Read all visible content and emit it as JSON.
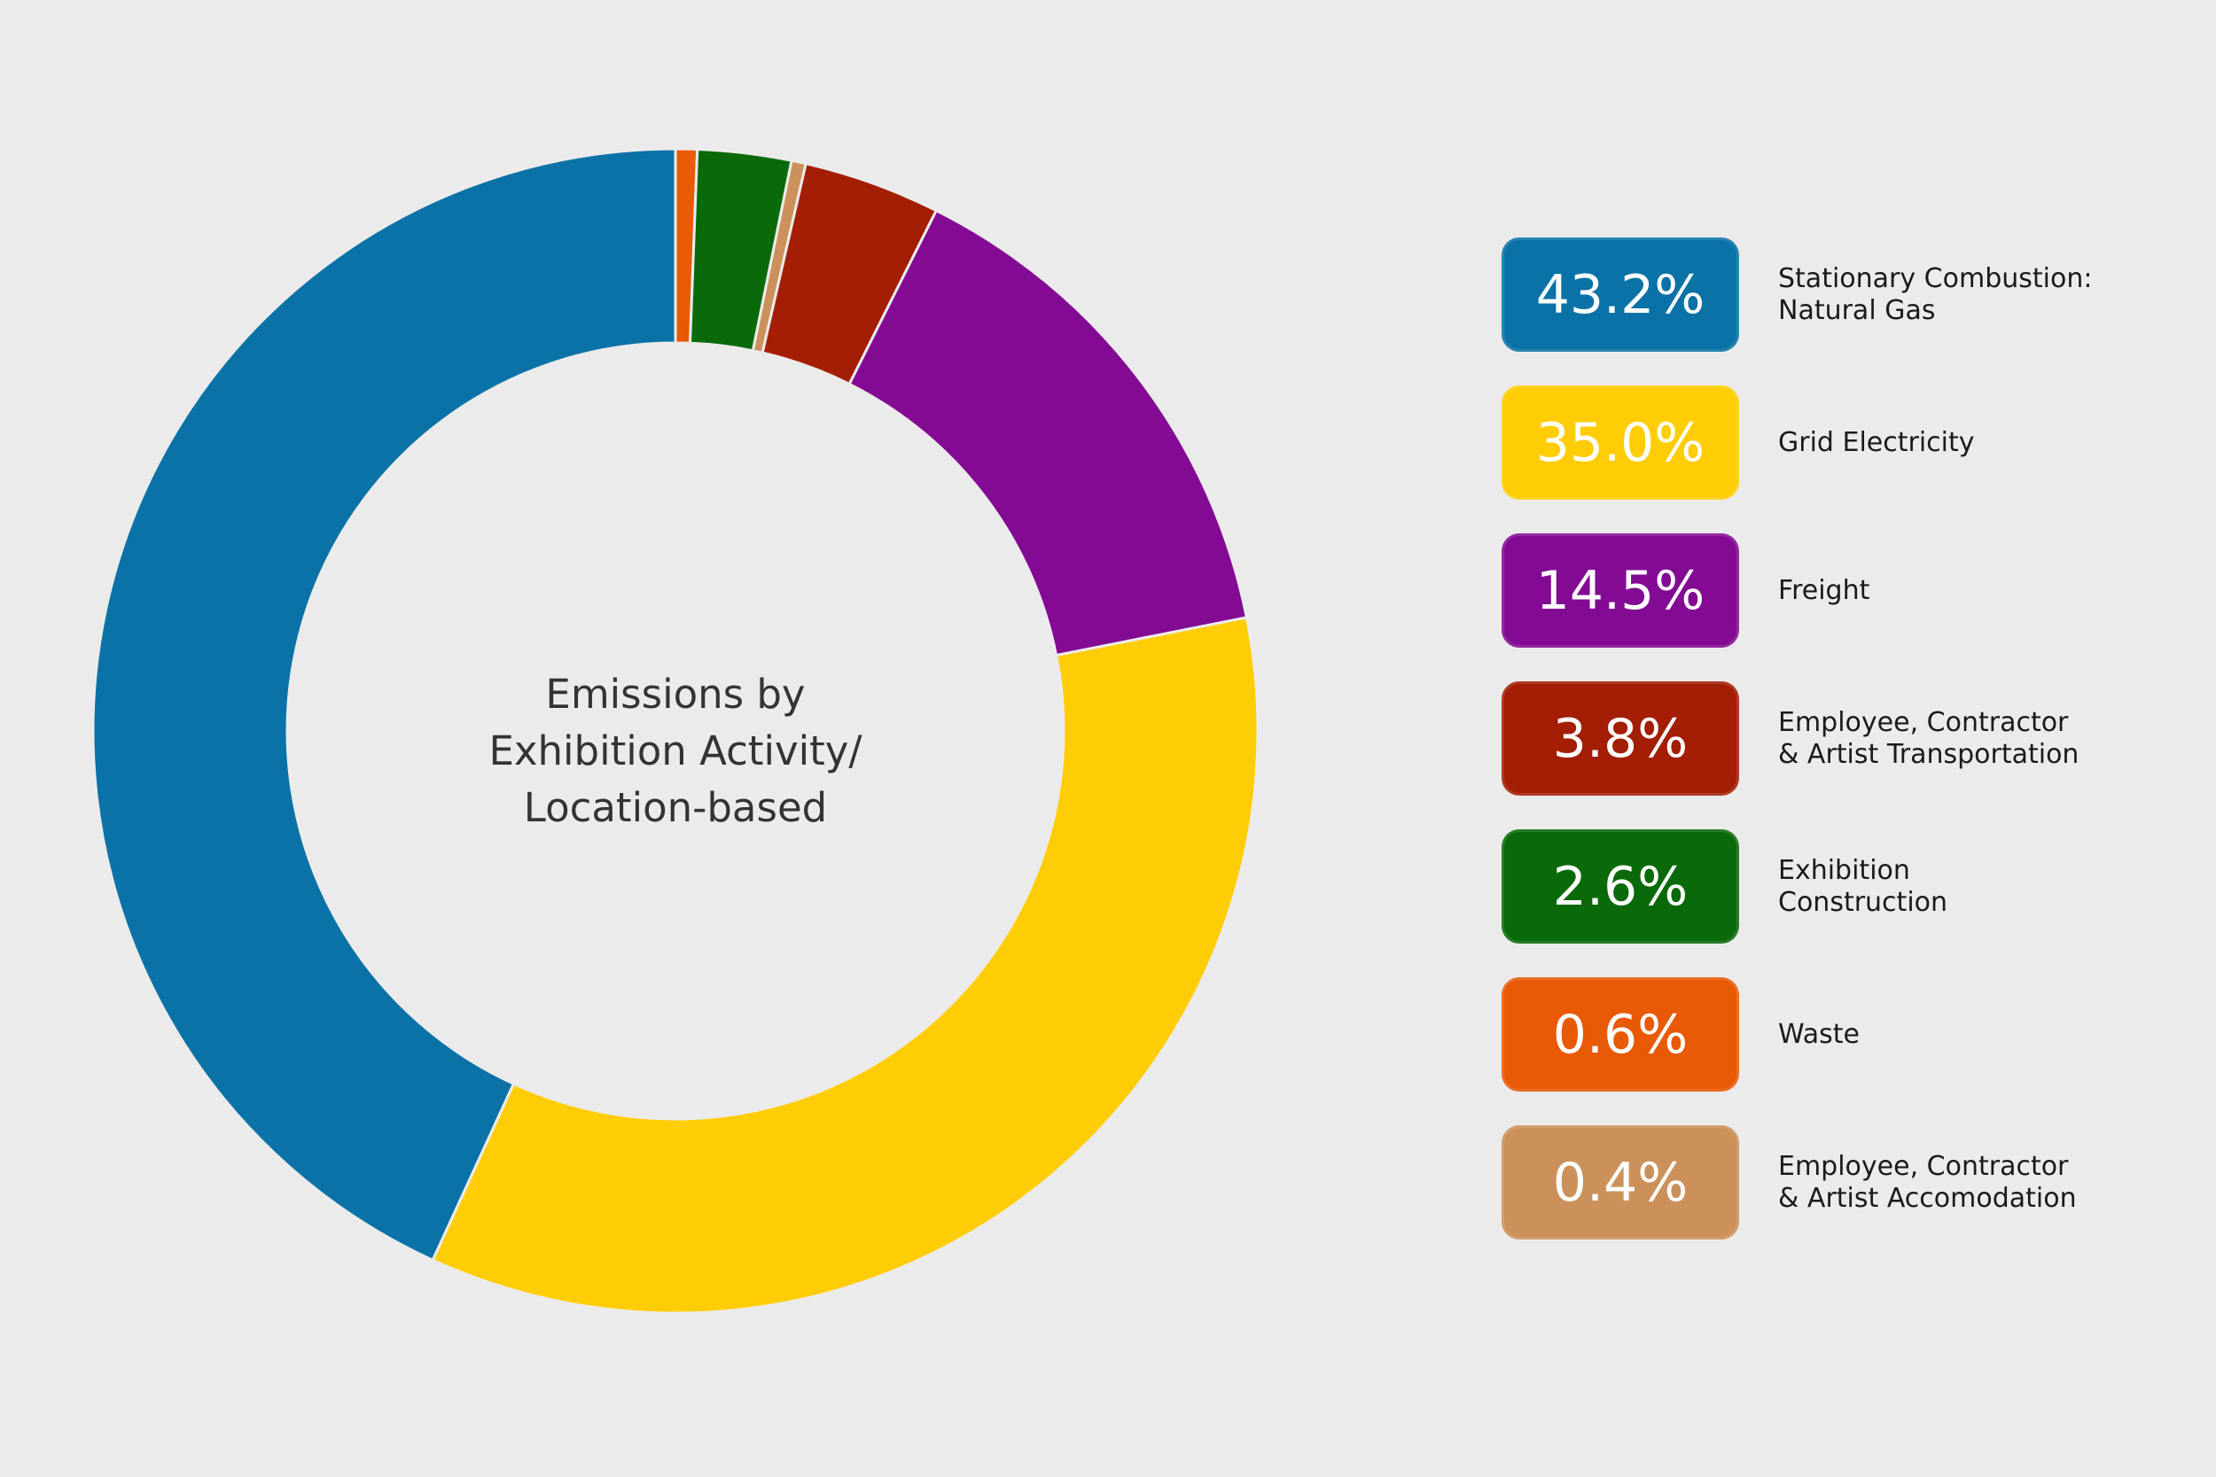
{
  "chart_data": {
    "type": "donut",
    "title_lines": [
      "Emissions by",
      "Exhibition Activity/",
      "Location-based"
    ],
    "slices": [
      {
        "label_lines": [
          "Stationary Combustion:",
          "Natural Gas"
        ],
        "value": 43.2,
        "display": "43.2%",
        "color": "#0a72a6"
      },
      {
        "label_lines": [
          "Grid Electricity"
        ],
        "value": 35.0,
        "display": "35.0%",
        "color": "#ffcd05"
      },
      {
        "label_lines": [
          "Freight"
        ],
        "value": 14.5,
        "display": "14.5%",
        "color": "#830a93"
      },
      {
        "label_lines": [
          "Employee, Contractor",
          "& Artist Transportation"
        ],
        "value": 3.8,
        "display": "3.8%",
        "color": "#a31e04"
      },
      {
        "label_lines": [
          "Exhibition",
          "Construction"
        ],
        "value": 2.6,
        "display": "2.6%",
        "color": "#0a6a0a"
      },
      {
        "label_lines": [
          "Waste"
        ],
        "value": 0.6,
        "display": "0.6%",
        "color": "#e85a06"
      },
      {
        "label_lines": [
          "Employee, Contractor",
          "& Artist Accomodation"
        ],
        "value": 0.4,
        "display": "0.4%",
        "color": "#cc915a"
      }
    ],
    "ring_order_clockwise_from_top": [
      "Waste",
      "Exhibition Construction",
      "Employee, Contractor & Artist Accomodation",
      "Employee, Contractor & Artist Transportation",
      "Freight",
      "Grid Electricity",
      "Stationary Combustion: Natural Gas"
    ],
    "legend_position": "right"
  }
}
